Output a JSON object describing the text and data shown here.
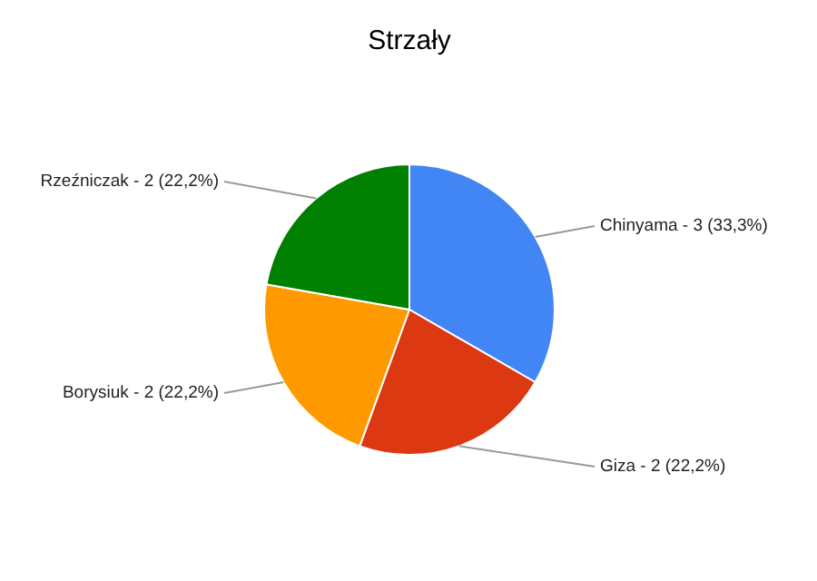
{
  "chart_data": {
    "type": "pie",
    "title": "Strzały",
    "categories": [
      "Chinyama",
      "Giza",
      "Borysiuk",
      "Rzeźniczak"
    ],
    "values": [
      3,
      2,
      2,
      2
    ],
    "value_labels": [
      "3 (33,3%)",
      "2 (22,2%)",
      "2 (22,2%)",
      "2 (22,2%)"
    ],
    "colors": [
      "#4285f4",
      "#dc3912",
      "#ff9900",
      "#008000"
    ]
  }
}
